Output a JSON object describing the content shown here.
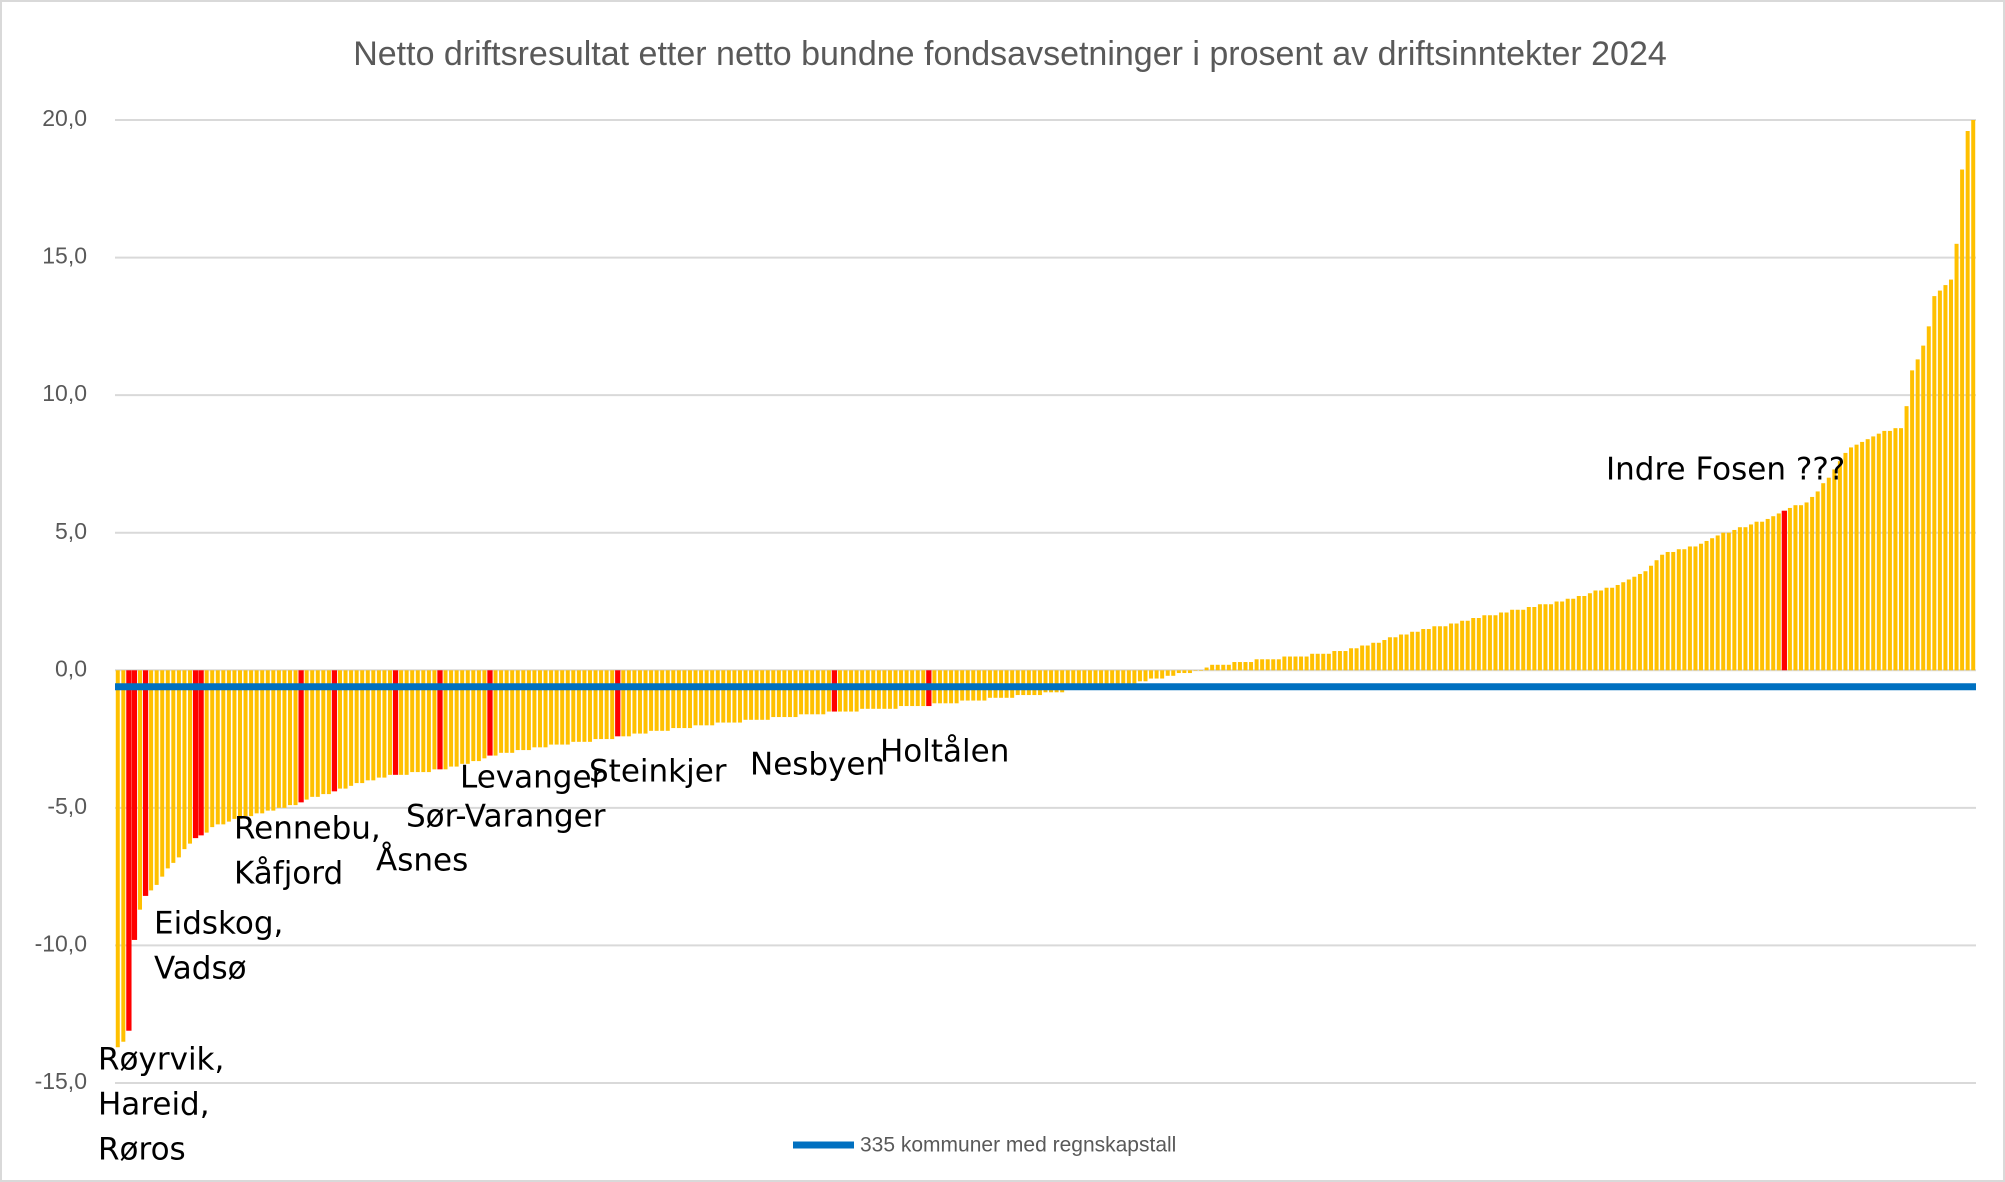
{
  "chart_data": {
    "type": "bar",
    "title": "Netto driftsresultat etter netto bundne fondsavsetninger i prosent av driftsinntekter 2024",
    "color": "#FFC000",
    "highlight_color": "#FF0000",
    "highlighted": [
      2,
      3,
      5,
      14,
      15,
      33,
      39,
      50,
      58,
      67,
      90,
      129,
      146,
      300
    ],
    "ylim": [
      -15,
      20
    ],
    "yticks": [
      {
        "value": -15,
        "label": "-15,0"
      },
      {
        "value": -10,
        "label": "-10,0"
      },
      {
        "value": -5,
        "label": "-5,0"
      },
      {
        "value": 0,
        "label": "0,0"
      },
      {
        "value": 5,
        "label": "5,0"
      },
      {
        "value": 10,
        "label": "10,0"
      },
      {
        "value": 15,
        "label": "15,0"
      },
      {
        "value": 20,
        "label": "20,0"
      }
    ],
    "grid": true,
    "reference_line": {
      "name": "335 kommuner med regnskapstall",
      "color": "#0070C0",
      "value": -0.6
    },
    "annotations": [
      [
        "Røyrvik,",
        "Hareid,",
        "Røros"
      ],
      [
        "Eidskog,",
        "Vadsø"
      ],
      [
        "Rennebu,",
        "Kåfjord"
      ],
      [
        "Åsnes"
      ],
      [
        "Levanger"
      ],
      [
        "Sør-Varanger"
      ],
      [
        "Steinkjer"
      ],
      [
        "Nesbyen"
      ],
      [
        "Holtålen"
      ],
      [
        "Indre Fosen ???"
      ]
    ],
    "values": [
      -13.7,
      -13.5,
      -13.1,
      -9.8,
      -8.7,
      -8.2,
      -8.0,
      -7.8,
      -7.5,
      -7.2,
      -7.0,
      -6.8,
      -6.5,
      -6.3,
      -6.1,
      -6.0,
      -5.9,
      -5.7,
      -5.6,
      -5.6,
      -5.5,
      -5.4,
      -5.4,
      -5.3,
      -5.3,
      -5.2,
      -5.2,
      -5.1,
      -5.1,
      -5.0,
      -5.0,
      -4.9,
      -4.9,
      -4.8,
      -4.7,
      -4.6,
      -4.6,
      -4.5,
      -4.5,
      -4.4,
      -4.3,
      -4.3,
      -4.2,
      -4.1,
      -4.1,
      -4.0,
      -4.0,
      -3.9,
      -3.9,
      -3.8,
      -3.8,
      -3.8,
      -3.8,
      -3.7,
      -3.7,
      -3.7,
      -3.7,
      -3.6,
      -3.6,
      -3.6,
      -3.5,
      -3.5,
      -3.4,
      -3.4,
      -3.3,
      -3.3,
      -3.2,
      -3.1,
      -3.1,
      -3.0,
      -3.0,
      -3.0,
      -2.9,
      -2.9,
      -2.9,
      -2.8,
      -2.8,
      -2.8,
      -2.7,
      -2.7,
      -2.7,
      -2.7,
      -2.6,
      -2.6,
      -2.6,
      -2.6,
      -2.5,
      -2.5,
      -2.5,
      -2.5,
      -2.4,
      -2.4,
      -2.4,
      -2.3,
      -2.3,
      -2.3,
      -2.2,
      -2.2,
      -2.2,
      -2.2,
      -2.1,
      -2.1,
      -2.1,
      -2.1,
      -2.0,
      -2.0,
      -2.0,
      -2.0,
      -1.9,
      -1.9,
      -1.9,
      -1.9,
      -1.9,
      -1.8,
      -1.8,
      -1.8,
      -1.8,
      -1.8,
      -1.7,
      -1.7,
      -1.7,
      -1.7,
      -1.7,
      -1.6,
      -1.6,
      -1.6,
      -1.6,
      -1.6,
      -1.5,
      -1.5,
      -1.5,
      -1.5,
      -1.5,
      -1.5,
      -1.4,
      -1.4,
      -1.4,
      -1.4,
      -1.4,
      -1.4,
      -1.4,
      -1.3,
      -1.3,
      -1.3,
      -1.3,
      -1.3,
      -1.3,
      -1.2,
      -1.2,
      -1.2,
      -1.2,
      -1.2,
      -1.1,
      -1.1,
      -1.1,
      -1.1,
      -1.1,
      -1.0,
      -1.0,
      -1.0,
      -1.0,
      -1.0,
      -0.9,
      -0.9,
      -0.9,
      -0.9,
      -0.9,
      -0.8,
      -0.8,
      -0.8,
      -0.8,
      -0.7,
      -0.7,
      -0.7,
      -0.7,
      -0.7,
      -0.6,
      -0.6,
      -0.6,
      -0.6,
      -0.6,
      -0.5,
      -0.5,
      -0.5,
      -0.4,
      -0.4,
      -0.3,
      -0.3,
      -0.3,
      -0.2,
      -0.2,
      -0.1,
      -0.1,
      -0.1,
      0.0,
      0.0,
      0.1,
      0.2,
      0.2,
      0.2,
      0.2,
      0.3,
      0.3,
      0.3,
      0.3,
      0.4,
      0.4,
      0.4,
      0.4,
      0.4,
      0.5,
      0.5,
      0.5,
      0.5,
      0.5,
      0.6,
      0.6,
      0.6,
      0.6,
      0.7,
      0.7,
      0.7,
      0.8,
      0.8,
      0.9,
      0.9,
      1.0,
      1.0,
      1.1,
      1.2,
      1.2,
      1.3,
      1.3,
      1.4,
      1.4,
      1.5,
      1.5,
      1.6,
      1.6,
      1.6,
      1.7,
      1.7,
      1.8,
      1.8,
      1.9,
      1.9,
      2.0,
      2.0,
      2.0,
      2.1,
      2.1,
      2.2,
      2.2,
      2.2,
      2.3,
      2.3,
      2.4,
      2.4,
      2.4,
      2.5,
      2.5,
      2.6,
      2.6,
      2.7,
      2.7,
      2.8,
      2.9,
      2.9,
      3.0,
      3.0,
      3.1,
      3.2,
      3.3,
      3.4,
      3.5,
      3.6,
      3.8,
      4.0,
      4.2,
      4.3,
      4.3,
      4.4,
      4.4,
      4.5,
      4.5,
      4.6,
      4.7,
      4.8,
      4.9,
      5.0,
      5.0,
      5.1,
      5.2,
      5.2,
      5.3,
      5.4,
      5.4,
      5.5,
      5.6,
      5.7,
      5.8,
      5.9,
      6.0,
      6.0,
      6.1,
      6.3,
      6.5,
      6.8,
      7.0,
      7.3,
      7.6,
      7.9,
      8.1,
      8.2,
      8.3,
      8.4,
      8.5,
      8.6,
      8.7,
      8.7,
      8.8,
      8.8,
      9.6,
      10.9,
      11.3,
      11.8,
      12.5,
      13.6,
      13.8,
      14.0,
      14.2,
      15.5,
      18.2,
      19.6,
      20.0
    ]
  }
}
